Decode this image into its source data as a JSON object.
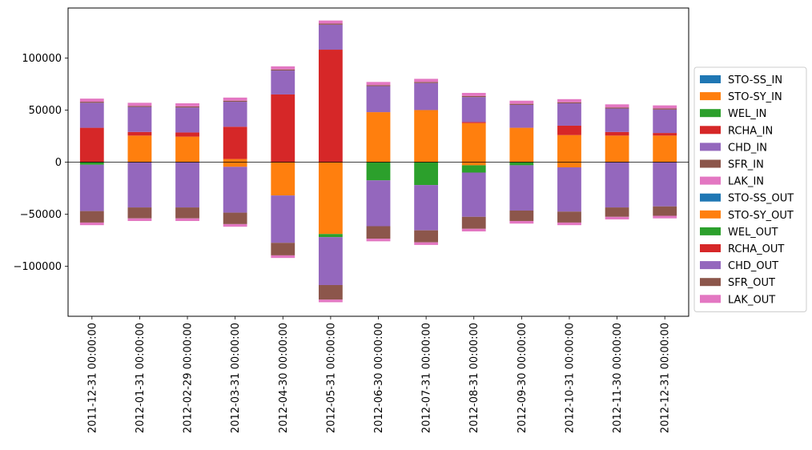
{
  "chart_data": {
    "type": "bar",
    "stacked": true,
    "diverging": true,
    "title": "",
    "xlabel": "",
    "ylabel": "",
    "ylim": [
      -148000,
      148000
    ],
    "yticks": [
      -100000,
      -50000,
      0,
      50000,
      100000
    ],
    "ytick_labels": [
      "−100000",
      "−50000",
      "0",
      "50000",
      "100000"
    ],
    "grid": false,
    "zero_line": true,
    "legend_position": "right",
    "categories": [
      "2011-12-31 00:00:00",
      "2012-01-31 00:00:00",
      "2012-02-29 00:00:00",
      "2012-03-31 00:00:00",
      "2012-04-30 00:00:00",
      "2012-05-31 00:00:00",
      "2012-06-30 00:00:00",
      "2012-07-31 00:00:00",
      "2012-08-31 00:00:00",
      "2012-09-30 00:00:00",
      "2012-10-31 00:00:00",
      "2012-11-30 00:00:00",
      "2012-12-31 00:00:00"
    ],
    "series": [
      {
        "name": "STO-SS_IN",
        "color": "#1f77b4",
        "values": [
          0,
          0,
          0,
          0,
          0,
          0,
          0,
          0,
          0,
          0,
          0,
          0,
          0
        ]
      },
      {
        "name": "STO-SY_IN",
        "color": "#ff7f0e",
        "values": [
          0,
          25500,
          24500,
          3000,
          0,
          0,
          48000,
          50000,
          37500,
          33000,
          26000,
          25500,
          25500
        ]
      },
      {
        "name": "WEL_IN",
        "color": "#2ca02c",
        "values": [
          0,
          0,
          0,
          0,
          0,
          0,
          0,
          0,
          0,
          0,
          0,
          0,
          0
        ]
      },
      {
        "name": "RCHA_IN",
        "color": "#d62728",
        "values": [
          33000,
          3500,
          4000,
          31000,
          65000,
          108000,
          0,
          0,
          1000,
          0,
          9000,
          3500,
          2500
        ]
      },
      {
        "name": "CHD_IN",
        "color": "#9467bd",
        "values": [
          24000,
          24000,
          24000,
          24000,
          23000,
          24000,
          25000,
          26000,
          24000,
          22000,
          21500,
          22500,
          22500
        ]
      },
      {
        "name": "SFR_IN",
        "color": "#8c564b",
        "values": [
          1000,
          1000,
          1000,
          1000,
          1000,
          1000,
          1000,
          1000,
          1000,
          1000,
          1000,
          1000,
          1000
        ]
      },
      {
        "name": "LAK_IN",
        "color": "#e377c2",
        "values": [
          3000,
          3000,
          3000,
          3000,
          3000,
          3000,
          3000,
          3000,
          3000,
          3000,
          3000,
          3000,
          3000
        ]
      },
      {
        "name": "STO-SS_OUT",
        "color": "#1f77b4",
        "values": [
          0,
          0,
          0,
          0,
          0,
          0,
          0,
          0,
          0,
          0,
          0,
          0,
          0
        ]
      },
      {
        "name": "STO-SY_OUT",
        "color": "#ff7f0e",
        "values": [
          0,
          0,
          0,
          -4500,
          -32000,
          -69000,
          0,
          0,
          -3000,
          0,
          -5000,
          0,
          0
        ]
      },
      {
        "name": "WEL_OUT",
        "color": "#2ca02c",
        "values": [
          -2500,
          0,
          0,
          0,
          0,
          -3000,
          -17500,
          -22000,
          -7000,
          -3000,
          0,
          0,
          0
        ]
      },
      {
        "name": "RCHA_OUT",
        "color": "#d62728",
        "values": [
          0,
          0,
          0,
          0,
          0,
          0,
          0,
          0,
          0,
          0,
          0,
          0,
          0
        ]
      },
      {
        "name": "CHD_OUT",
        "color": "#9467bd",
        "values": [
          -44500,
          -43500,
          -43500,
          -44000,
          -45500,
          -46000,
          -44000,
          -43500,
          -42500,
          -43500,
          -42500,
          -43500,
          -42500
        ]
      },
      {
        "name": "SFR_OUT",
        "color": "#8c564b",
        "values": [
          -11000,
          -10500,
          -10500,
          -11000,
          -12000,
          -14000,
          -12000,
          -11500,
          -11500,
          -10000,
          -10500,
          -9000,
          -9000
        ]
      },
      {
        "name": "LAK_OUT",
        "color": "#e377c2",
        "values": [
          -2500,
          -2500,
          -2500,
          -2500,
          -2500,
          -2500,
          -2500,
          -2500,
          -2500,
          -2500,
          -2500,
          -2500,
          -2500
        ]
      }
    ]
  }
}
